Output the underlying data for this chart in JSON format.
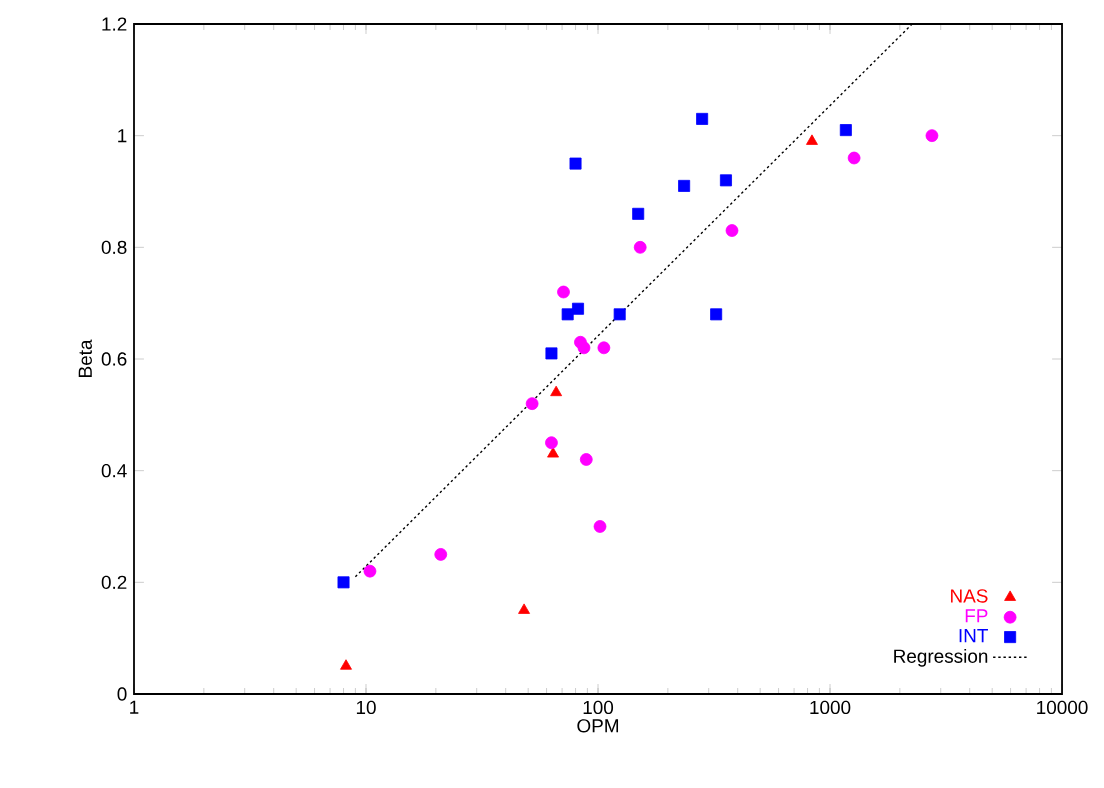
{
  "chart_data": {
    "type": "scatter",
    "xlabel": "OPM",
    "ylabel": "Beta",
    "log": "x",
    "xlim": [
      1,
      10000
    ],
    "ylim": [
      0,
      1.2
    ],
    "xticks": [
      1,
      10,
      100,
      1000,
      10000
    ],
    "yticks": [
      0,
      0.2,
      0.4,
      0.6,
      0.8,
      1,
      1.2
    ],
    "grid": false,
    "legend": "bottom right",
    "series": [
      {
        "name": "NAS",
        "color": "#ff0000",
        "marker": "triangle",
        "x": [
          8.2,
          48,
          64,
          66,
          836
        ],
        "values": [
          0.05,
          0.15,
          0.43,
          0.54,
          0.99
        ]
      },
      {
        "name": "FP",
        "color": "#ff00ff",
        "marker": "circle",
        "x": [
          10.4,
          21,
          52,
          63,
          89,
          102,
          71,
          84,
          87,
          106,
          152,
          378,
          1270,
          2750
        ],
        "values": [
          0.22,
          0.25,
          0.52,
          0.45,
          0.42,
          0.3,
          0.72,
          0.63,
          0.62,
          0.62,
          0.8,
          0.83,
          0.96,
          1.0
        ]
      },
      {
        "name": "INT",
        "color": "#0000ff",
        "marker": "square",
        "x": [
          8.0,
          63,
          74,
          82,
          80,
          124,
          149,
          235,
          281,
          323,
          356,
          1170
        ],
        "values": [
          0.2,
          0.61,
          0.68,
          0.69,
          0.95,
          0.68,
          0.86,
          0.91,
          1.03,
          0.68,
          0.92,
          1.01
        ]
      },
      {
        "name": "Regression",
        "type": "line",
        "color": "#000000",
        "marker": "none",
        "line_style": "dotted",
        "x": [
          9,
          2260
        ],
        "values": [
          0.21,
          1.2
        ]
      }
    ]
  }
}
